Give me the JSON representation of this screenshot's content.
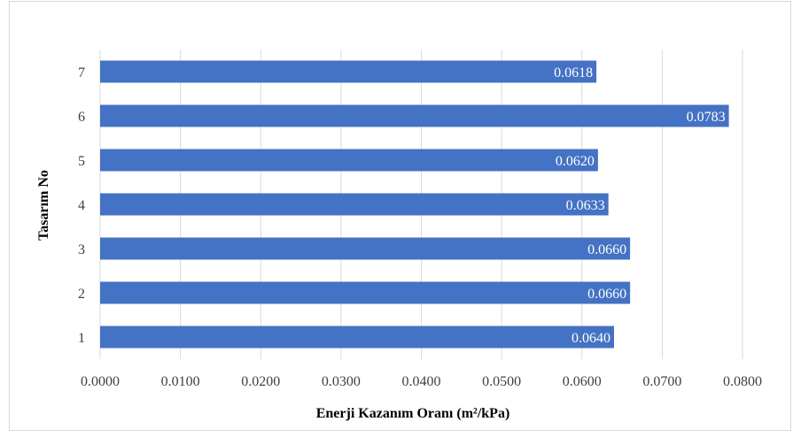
{
  "chart_data": {
    "type": "bar",
    "orientation": "horizontal",
    "categories": [
      "1",
      "2",
      "3",
      "4",
      "5",
      "6",
      "7"
    ],
    "values": [
      0.064,
      0.066,
      0.066,
      0.0633,
      0.062,
      0.0783,
      0.0618
    ],
    "value_labels": [
      "0.0640",
      "0.0660",
      "0.0660",
      "0.0633",
      "0.0620",
      "0.0783",
      "0.0618"
    ],
    "xlabel": "Enerji Kazanım Oranı (m²/kPa)",
    "ylabel": "Tasarım No",
    "xlim": [
      0,
      0.08
    ],
    "x_ticks": [
      "0.0000",
      "0.0100",
      "0.0200",
      "0.0300",
      "0.0400",
      "0.0500",
      "0.0600",
      "0.0700",
      "0.0800"
    ],
    "grid": true,
    "bar_color": "#4472c4"
  }
}
